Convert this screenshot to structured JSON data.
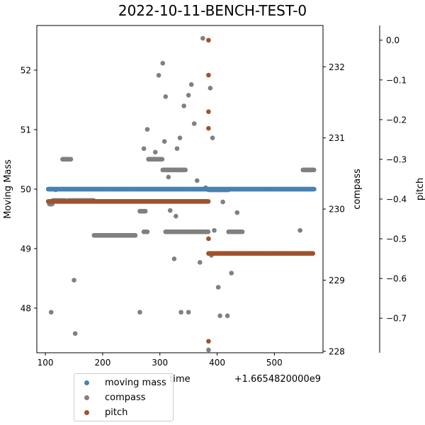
{
  "chart_data": {
    "type": "scatter",
    "title": "2022-10-11-BENCH-TEST-0",
    "xlabel": "time",
    "x_offset_label": "+1.6654820000e9",
    "x_ticks": [
      "100",
      "200",
      "300",
      "400",
      "500"
    ],
    "xlim": [
      85,
      585
    ],
    "axes": [
      {
        "name": "moving-mass-axis",
        "ylabel": "Moving Mass",
        "side": "left",
        "ylim": [
          47.25,
          52.75
        ],
        "ticks": [
          "48",
          "49",
          "50",
          "51",
          "52"
        ]
      },
      {
        "name": "compass-axis",
        "ylabel": "compass",
        "side": "right",
        "ylim": [
          227.98,
          232.58
        ],
        "ticks": [
          "228",
          "229",
          "230",
          "231",
          "232"
        ]
      },
      {
        "name": "pitch-axis",
        "ylabel": "pitch",
        "side": "right",
        "ylim": [
          -0.787,
          0.037
        ],
        "ticks": [
          "0.0",
          "−0.1",
          "−0.2",
          "−0.3",
          "−0.4",
          "−0.5",
          "−0.6",
          "−0.7"
        ]
      }
    ],
    "legend": {
      "position": "lower-left, below axes",
      "entries": [
        "moving mass",
        "compass",
        "pitch"
      ]
    },
    "grid": false,
    "series": [
      {
        "name": "moving mass",
        "color": "#4682b4",
        "axis": 0,
        "points": [
          [
            105,
            50.0
          ],
          [
            570,
            50.0
          ]
        ],
        "dense_segments": [
          [
            105,
            570,
            50.0
          ]
        ]
      },
      {
        "name": "compass",
        "color": "#808080",
        "axis": 1,
        "dense_segments": [
          [
            107,
            113,
            230.07
          ],
          [
            113,
            135,
            230.12
          ],
          [
            140,
            185,
            230.12
          ],
          [
            185,
            258,
            229.63
          ],
          [
            130,
            145,
            230.7
          ],
          [
            265,
            275,
            229.97
          ],
          [
            272,
            278,
            229.68
          ],
          [
            280,
            305,
            230.7
          ],
          [
            310,
            385,
            229.68
          ],
          [
            305,
            345,
            230.55
          ],
          [
            385,
            420,
            230.27
          ],
          [
            420,
            445,
            229.68
          ],
          [
            550,
            570,
            230.55
          ]
        ],
        "scattered": [
          [
            110,
            228.55
          ],
          [
            118,
            230.27
          ],
          [
            150,
            229.0
          ],
          [
            152,
            228.25
          ],
          [
            265,
            228.55
          ],
          [
            272,
            230.85
          ],
          [
            278,
            231.12
          ],
          [
            292,
            230.8
          ],
          [
            298,
            231.88
          ],
          [
            305,
            232.05
          ],
          [
            310,
            231.58
          ],
          [
            308,
            230.95
          ],
          [
            315,
            230.45
          ],
          [
            318,
            229.98
          ],
          [
            325,
            229.3
          ],
          [
            328,
            229.9
          ],
          [
            330,
            230.85
          ],
          [
            335,
            231.0
          ],
          [
            342,
            231.45
          ],
          [
            350,
            231.6
          ],
          [
            355,
            231.75
          ],
          [
            360,
            231.2
          ],
          [
            365,
            230.4
          ],
          [
            370,
            229.25
          ],
          [
            375,
            232.4
          ],
          [
            380,
            230.3
          ],
          [
            388,
            231.7
          ],
          [
            392,
            231.0
          ],
          [
            395,
            229.7
          ],
          [
            402,
            228.9
          ],
          [
            405,
            228.5
          ],
          [
            410,
            230.1
          ],
          [
            418,
            228.5
          ],
          [
            425,
            229.1
          ],
          [
            435,
            229.95
          ],
          [
            545,
            229.7
          ],
          [
            385,
            228.02
          ],
          [
            390,
            229.35
          ],
          [
            337,
            228.55
          ],
          [
            350,
            228.55
          ]
        ]
      },
      {
        "name": "pitch",
        "color": "#a0522d",
        "axis": 2,
        "dense_segments": [
          [
            105,
            385,
            -0.406
          ],
          [
            385,
            568,
            -0.537
          ]
        ],
        "scattered": [
          [
            385,
            0.0
          ],
          [
            385,
            -0.088
          ],
          [
            385,
            -0.18
          ],
          [
            385,
            -0.222
          ],
          [
            385,
            -0.5
          ],
          [
            385,
            -0.758
          ]
        ]
      }
    ]
  }
}
